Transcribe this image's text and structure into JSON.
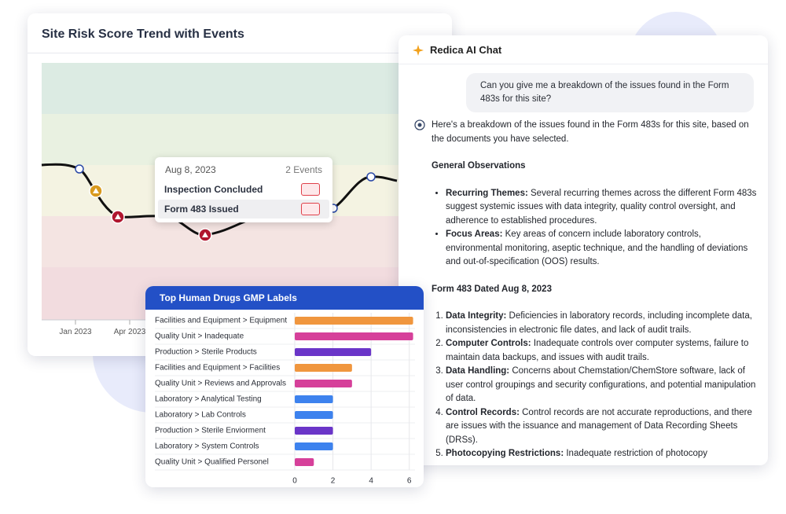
{
  "risk_card": {
    "title": "Site Risk Score Trend with Events",
    "x_labels": [
      "Jan 2023",
      "Apr 2023"
    ],
    "tooltip": {
      "date": "Aug 8, 2023",
      "count": "2 Events",
      "events": [
        "Inspection Concluded",
        "Form 483 Issued"
      ]
    }
  },
  "chart_data": {
    "type": "bar",
    "orientation": "horizontal",
    "title": "Top Human Drugs GMP Labels",
    "categories": [
      "Facilities and Equipment > Equipment",
      "Quality Unit > Inadequate",
      "Production > Sterile Products",
      "Facilities and Equipment > Facilities",
      "Quality Unit > Reviews and Approvals",
      "Laboratory > Analytical Testing",
      "Laboratory > Lab Controls",
      "Production > Sterile Enviorment",
      "Laboratory > System Controls",
      "Quality Unit > Qualified Personel"
    ],
    "values": [
      6.2,
      6.2,
      4,
      3,
      3,
      2,
      2,
      2,
      2,
      1
    ],
    "colors": [
      "#f0963e",
      "#d6409a",
      "#6a35c8",
      "#f0963e",
      "#d6409a",
      "#3d82ee",
      "#3d82ee",
      "#6a35c8",
      "#3d82ee",
      "#d6409a"
    ],
    "xlim": [
      0,
      6.3
    ],
    "xticks": [
      0,
      2,
      4,
      6
    ],
    "grid": true
  },
  "chat": {
    "title": "Redica AI Chat",
    "user_message": "Can you give me a breakdown of the issues found in the Form 483s for this site?",
    "reply_intro": "Here's a breakdown of the issues found in the Form 483s for this site, based on the documents you have selected.",
    "sections": [
      {
        "heading": "General Observations",
        "ordered": false,
        "items": [
          {
            "label": "Recurring Themes:",
            "text": "Several recurring themes across the different Form 483s suggest systemic issues with data integrity, quality control oversight, and adherence to established procedures."
          },
          {
            "label": "Focus Areas:",
            "text": "Key areas of concern include laboratory controls, environmental monitoring, aseptic technique, and the handling of deviations and out-of-specification (OOS) results."
          }
        ]
      },
      {
        "heading": "Form 483 Dated Aug 8, 2023",
        "ordered": true,
        "items": [
          {
            "label": "Data Integrity:",
            "text": "Deficiencies in laboratory records, including incomplete data, inconsistencies in electronic file dates, and lack of audit trails."
          },
          {
            "label": "Computer Controls:",
            "text": "Inadequate controls over computer systems, failure to maintain data backups, and issues with audit trails."
          },
          {
            "label": "Data Handling:",
            "text": "Concerns about Chemstation/ChemStore software, lack of user control groupings and security configurations, and potential manipulation of data."
          },
          {
            "label": "Control Records:",
            "text": "Control records are not accurate reproductions, and there are issues with the issuance and management of Data Recording Sheets (DRSs)."
          },
          {
            "label": "Photocopying Restrictions:",
            "text": "Inadequate restriction of photocopy"
          }
        ]
      }
    ]
  }
}
